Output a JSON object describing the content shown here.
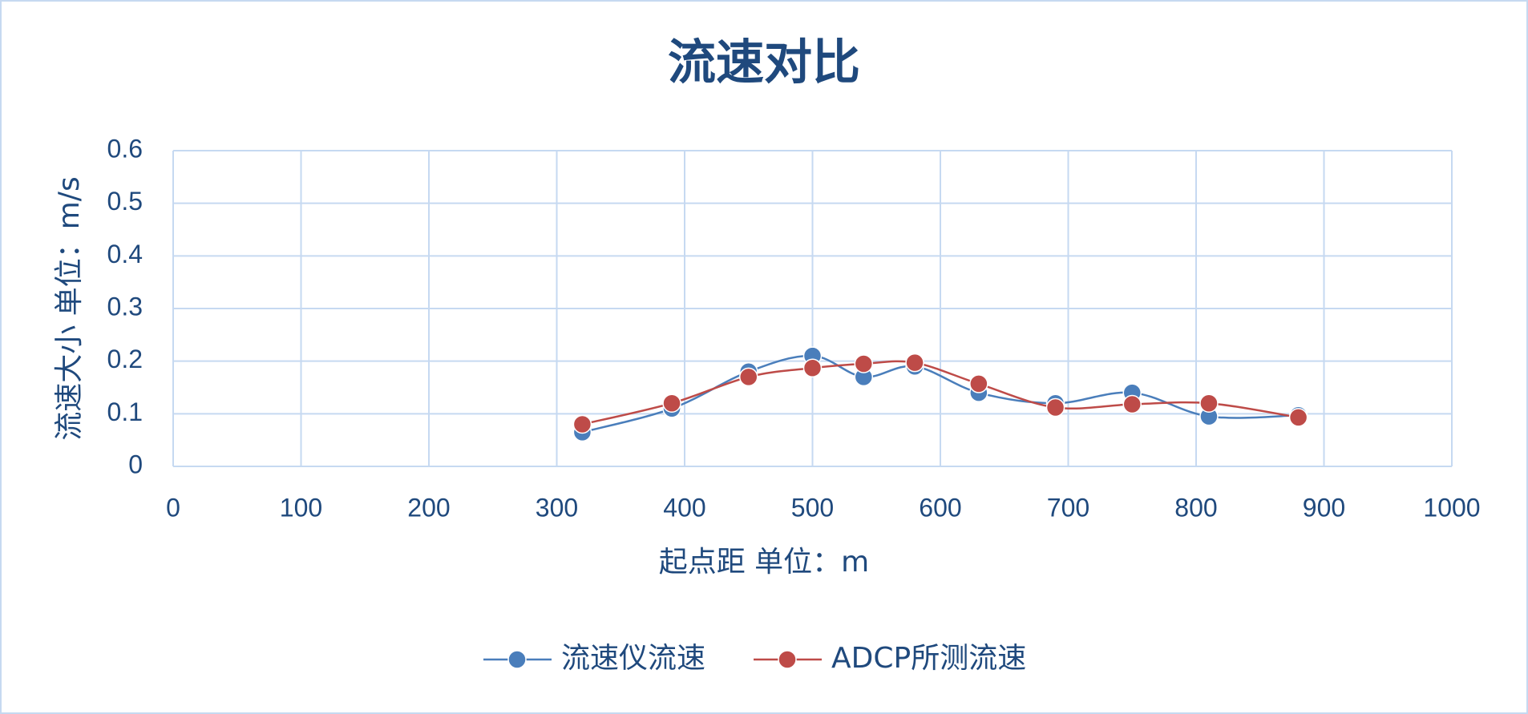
{
  "chart_data": {
    "type": "scatter",
    "title": "流速对比",
    "x_label": "起点距  单位：m",
    "y_label": "流速大小  单位：m/s",
    "x": [
      320,
      390,
      450,
      500,
      540,
      580,
      630,
      690,
      750,
      810,
      880
    ],
    "series": [
      {
        "name": "流速仪流速",
        "color": "#4a7ebb",
        "values": [
          0.065,
          0.11,
          0.18,
          0.21,
          0.17,
          0.19,
          0.14,
          0.12,
          0.14,
          0.095,
          0.097
        ]
      },
      {
        "name": "ADCP所测流速",
        "color": "#be4b48",
        "values": [
          0.08,
          0.12,
          0.17,
          0.187,
          0.195,
          0.197,
          0.157,
          0.112,
          0.118,
          0.12,
          0.093
        ]
      }
    ],
    "xlim": [
      0,
      1000
    ],
    "xticks": [
      0,
      100,
      200,
      300,
      400,
      500,
      600,
      700,
      800,
      900,
      1000
    ],
    "ylim": [
      0,
      0.6
    ],
    "yticks": [
      0,
      0.1,
      0.2,
      0.3,
      0.4,
      0.5,
      0.6
    ],
    "grid": true,
    "smooth": true,
    "legend": "bottom"
  }
}
